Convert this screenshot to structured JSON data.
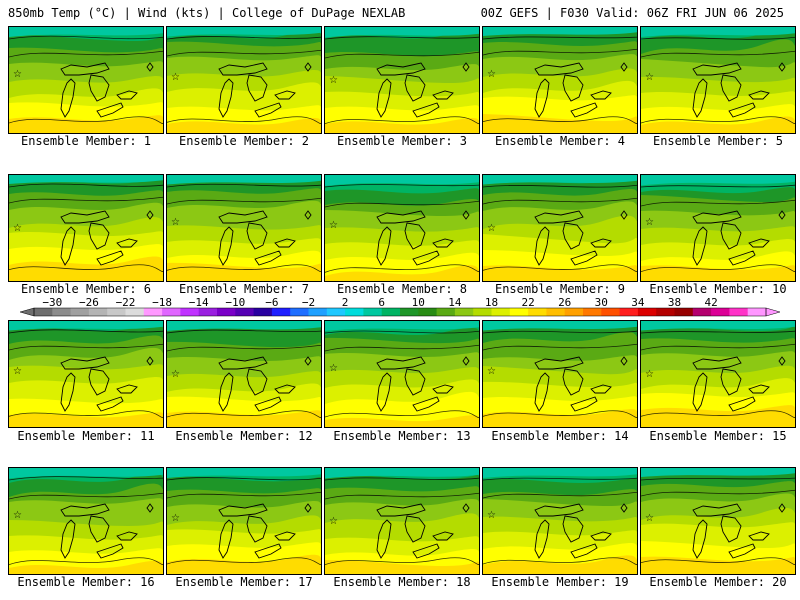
{
  "header": {
    "left": "850mb Temp (°C) | Wind (kts) | College of DuPage NEXLAB",
    "right": "00Z GEFS | F030 Valid: 06Z FRI JUN 06 2025"
  },
  "member_prefix": "Ensemble Member: ",
  "members": [
    {
      "id": "1",
      "warm": 0.45
    },
    {
      "id": "2",
      "warm": 0.5
    },
    {
      "id": "3",
      "warm": 0.4
    },
    {
      "id": "4",
      "warm": 0.55
    },
    {
      "id": "5",
      "warm": 0.45
    },
    {
      "id": "6",
      "warm": 0.55
    },
    {
      "id": "7",
      "warm": 0.5
    },
    {
      "id": "8",
      "warm": 0.35
    },
    {
      "id": "9",
      "warm": 0.5
    },
    {
      "id": "10",
      "warm": 0.4
    },
    {
      "id": "11",
      "warm": 0.5
    },
    {
      "id": "12",
      "warm": 0.45
    },
    {
      "id": "13",
      "warm": 0.45
    },
    {
      "id": "14",
      "warm": 0.5
    },
    {
      "id": "15",
      "warm": 0.5
    },
    {
      "id": "16",
      "warm": 0.4
    },
    {
      "id": "17",
      "warm": 0.45
    },
    {
      "id": "18",
      "warm": 0.4
    },
    {
      "id": "19",
      "warm": 0.45
    },
    {
      "id": "20",
      "warm": 0.55
    }
  ],
  "colorbar": {
    "labels": [
      "−30",
      "−26",
      "−22",
      "−18",
      "−14",
      "−10",
      "−6",
      "−2",
      "2",
      "6",
      "10",
      "14",
      "18",
      "22",
      "26",
      "30",
      "34",
      "38",
      "42"
    ],
    "colors": [
      "#6e6e6e",
      "#8c8c8c",
      "#a0a0a0",
      "#b4b4b4",
      "#c8c8c8",
      "#dcdcdc",
      "#ff99ff",
      "#e066ff",
      "#c032ff",
      "#9a1fe0",
      "#7a00c8",
      "#5500b4",
      "#2800a0",
      "#1e1eff",
      "#1e6eff",
      "#1ea0ff",
      "#1ec8ff",
      "#00dcdc",
      "#00c8a0",
      "#00b464",
      "#1e9628",
      "#288c14",
      "#5aaa14",
      "#8cc814",
      "#b4dc00",
      "#dcf000",
      "#ffff00",
      "#ffdc00",
      "#ffbe00",
      "#ffa000",
      "#ff7800",
      "#ff5000",
      "#ff1e1e",
      "#dc0000",
      "#b40000",
      "#960000",
      "#b4006e",
      "#dc0096",
      "#ff32c8",
      "#ff96ff"
    ]
  }
}
